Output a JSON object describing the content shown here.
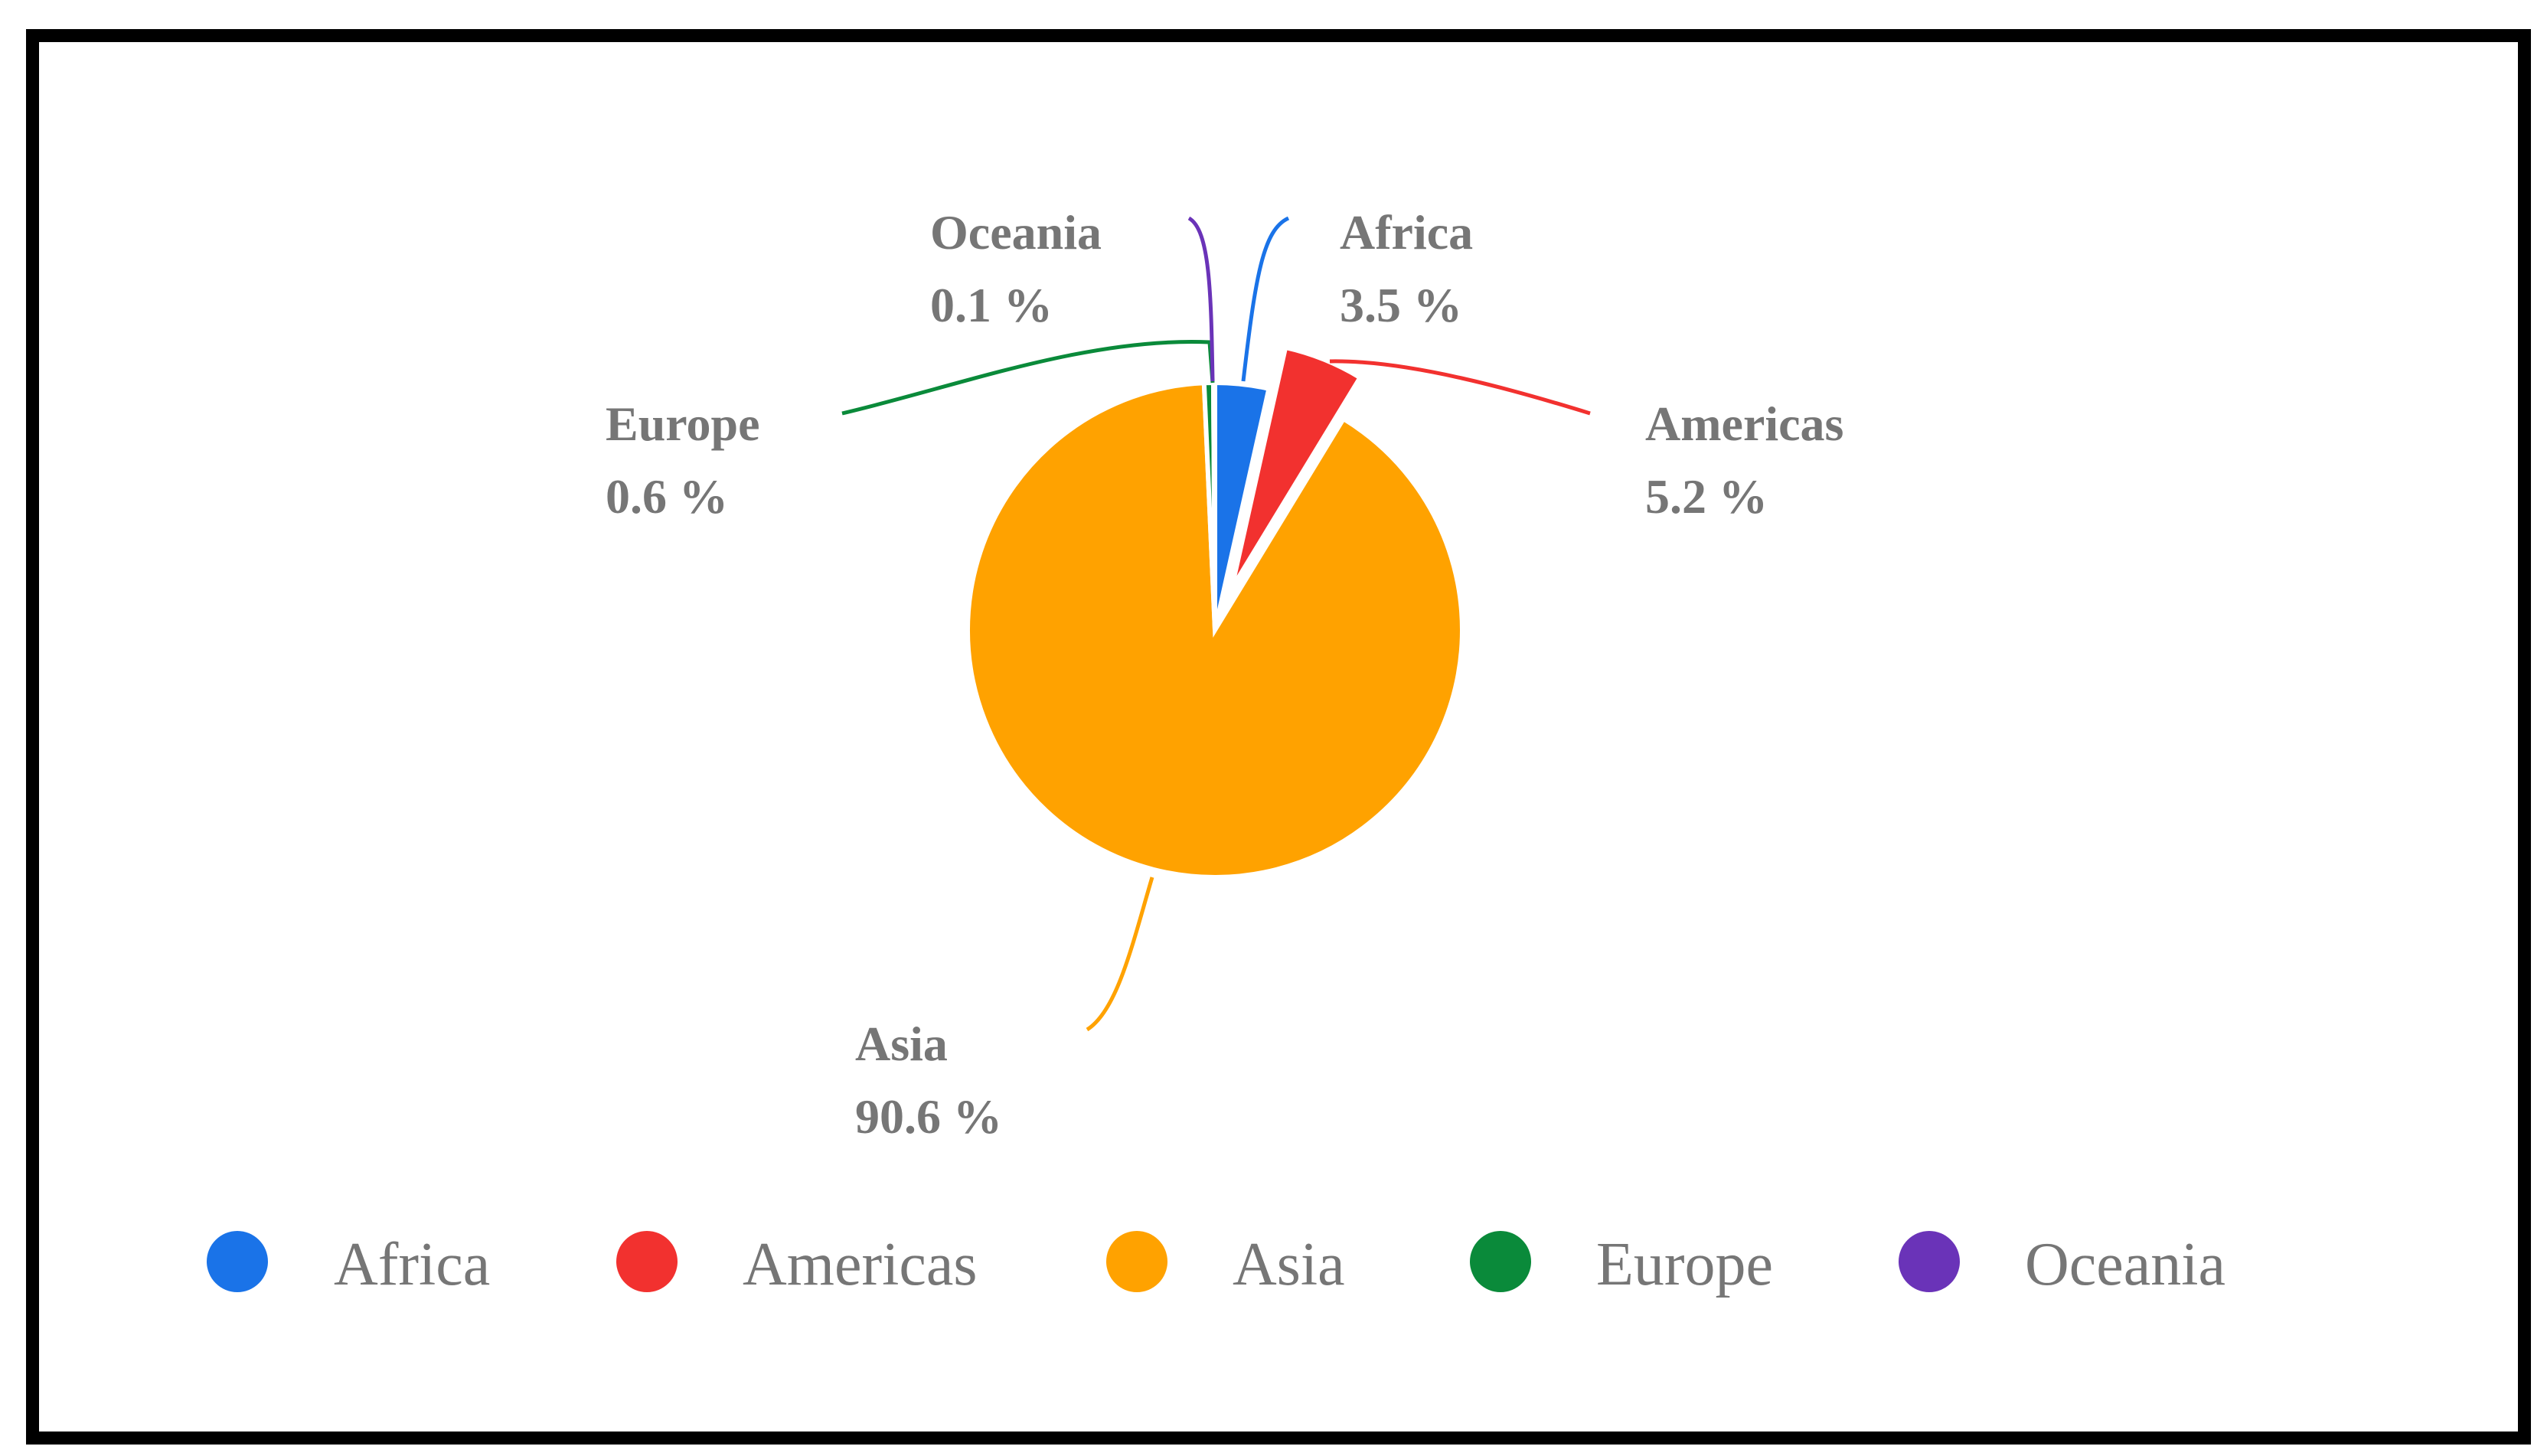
{
  "chart_data": {
    "type": "pie",
    "title": "",
    "slices": [
      {
        "name": "Africa",
        "value": 3.5,
        "label": "3.5 %",
        "color": "#1a73e8"
      },
      {
        "name": "Americas",
        "value": 5.2,
        "label": "5.2 %",
        "color": "#f2312f"
      },
      {
        "name": "Asia",
        "value": 90.6,
        "label": "90.6 %",
        "color": "#ffa200"
      },
      {
        "name": "Europe",
        "value": 0.6,
        "label": "0.6 %",
        "color": "#0a8a3a"
      },
      {
        "name": "Oceania",
        "value": 0.1,
        "label": "0.1 %",
        "color": "#6a33b8"
      }
    ],
    "legend": {
      "position": "bottom",
      "marker": "circle"
    },
    "exploded_slices": [
      "Americas"
    ],
    "start_angle": "12 o'clock",
    "direction": "clockwise"
  }
}
